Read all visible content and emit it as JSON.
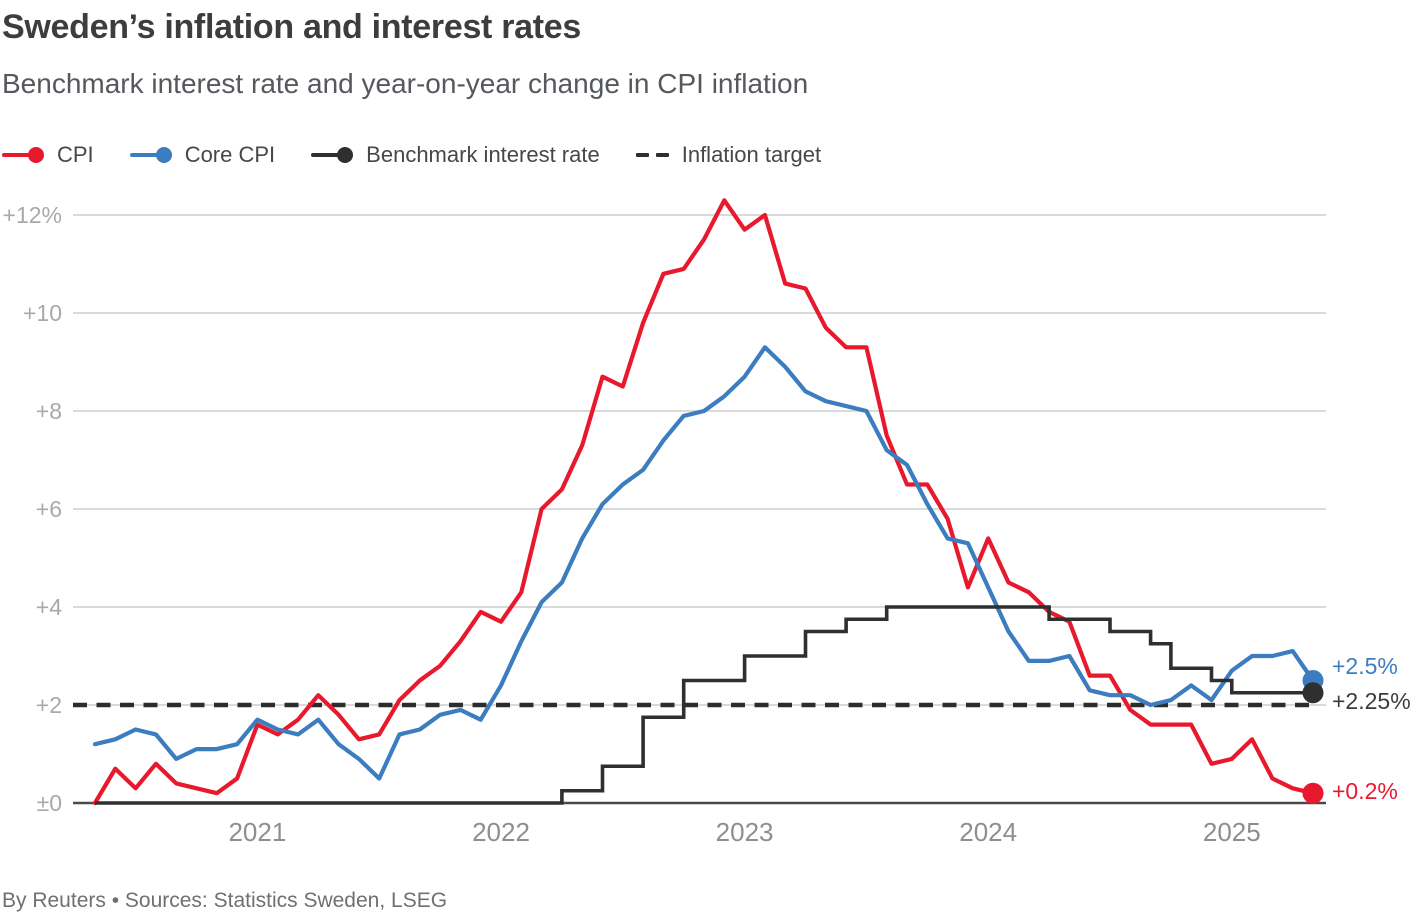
{
  "header": {
    "title": "Sweden’s inflation and interest rates",
    "subtitle": "Benchmark interest rate and year-on-year change in CPI inflation"
  },
  "legend": [
    {
      "label": "CPI",
      "color": "#e8192d",
      "marker": "line-dot"
    },
    {
      "label": "Core CPI",
      "color": "#3c7dbf",
      "marker": "line-dot"
    },
    {
      "label": "Benchmark interest rate",
      "color": "#2f2f2f",
      "marker": "line-dot"
    },
    {
      "label": "Inflation target",
      "color": "#2f2f2f",
      "marker": "dashes"
    }
  ],
  "footer": {
    "credit": "By Reuters • Sources: Statistics Sweden, LSEG"
  },
  "chart_data": {
    "type": "line",
    "title": "Sweden’s inflation and interest rates",
    "subtitle": "Benchmark interest rate and year-on-year change in CPI inflation",
    "x_frequency": "monthly",
    "x_start": "2020-05",
    "x_end": "2025-05",
    "x_year_ticks": [
      {
        "label": "2021",
        "month_index": 8
      },
      {
        "label": "2022",
        "month_index": 20
      },
      {
        "label": "2023",
        "month_index": 32
      },
      {
        "label": "2024",
        "month_index": 44
      },
      {
        "label": "2025",
        "month_index": 56
      }
    ],
    "yticks": [
      {
        "label": "+12%",
        "value": 12
      },
      {
        "label": "+10",
        "value": 10
      },
      {
        "label": "+8",
        "value": 8
      },
      {
        "label": "+6",
        "value": 6
      },
      {
        "label": "+4",
        "value": 4
      },
      {
        "label": "+2",
        "value": 2
      },
      {
        "label": "±0",
        "value": 0
      }
    ],
    "ylim": [
      0,
      12.6
    ],
    "grid": "horizontal",
    "legend_position": "top",
    "inflation_target_value": 2,
    "series": [
      {
        "name": "CPI",
        "color": "#e8192d",
        "style": "line",
        "end_label": "+0.2%",
        "latest_value": 0.2,
        "values": [
          0.0,
          0.7,
          0.3,
          0.8,
          0.4,
          0.3,
          0.2,
          0.5,
          1.6,
          1.4,
          1.7,
          2.2,
          1.8,
          1.3,
          1.4,
          2.1,
          2.5,
          2.8,
          3.3,
          3.9,
          3.7,
          4.3,
          6.0,
          6.4,
          7.3,
          8.7,
          8.5,
          9.8,
          10.8,
          10.9,
          11.5,
          12.3,
          11.7,
          12.0,
          10.6,
          10.5,
          9.7,
          9.3,
          9.3,
          7.5,
          6.5,
          6.5,
          5.8,
          4.4,
          5.4,
          4.5,
          4.3,
          3.9,
          3.7,
          2.6,
          2.6,
          1.9,
          1.6,
          1.6,
          1.6,
          0.8,
          0.9,
          1.3,
          0.5,
          0.3,
          0.2
        ]
      },
      {
        "name": "Core CPI",
        "color": "#3c7dbf",
        "style": "line",
        "end_label": "+2.5%",
        "latest_value": 2.5,
        "values": [
          1.2,
          1.3,
          1.5,
          1.4,
          0.9,
          1.1,
          1.1,
          1.2,
          1.7,
          1.5,
          1.4,
          1.7,
          1.2,
          0.9,
          0.5,
          1.4,
          1.5,
          1.8,
          1.9,
          1.7,
          2.4,
          3.3,
          4.1,
          4.5,
          5.4,
          6.1,
          6.5,
          6.8,
          7.4,
          7.9,
          8.0,
          8.3,
          8.7,
          9.3,
          8.9,
          8.4,
          8.2,
          8.1,
          8.0,
          7.2,
          6.9,
          6.1,
          5.4,
          5.3,
          4.4,
          3.5,
          2.9,
          2.9,
          3.0,
          2.3,
          2.2,
          2.2,
          2.0,
          2.1,
          2.4,
          2.1,
          2.7,
          3.0,
          3.0,
          3.1,
          2.5
        ]
      },
      {
        "name": "Benchmark interest rate",
        "color": "#2f2f2f",
        "style": "step",
        "end_label": "+2.25%",
        "latest_value": 2.25,
        "values": [
          0,
          0,
          0,
          0,
          0,
          0,
          0,
          0,
          0,
          0,
          0,
          0,
          0,
          0,
          0,
          0,
          0,
          0,
          0,
          0,
          0,
          0,
          0,
          0.25,
          0.25,
          0.75,
          0.75,
          1.75,
          1.75,
          2.5,
          2.5,
          2.5,
          3.0,
          3.0,
          3.0,
          3.5,
          3.5,
          3.75,
          3.75,
          4.0,
          4.0,
          4.0,
          4.0,
          4.0,
          4.0,
          4.0,
          4.0,
          3.75,
          3.75,
          3.75,
          3.5,
          3.5,
          3.25,
          2.75,
          2.75,
          2.5,
          2.25,
          2.25,
          2.25,
          2.25,
          2.25
        ]
      }
    ]
  }
}
